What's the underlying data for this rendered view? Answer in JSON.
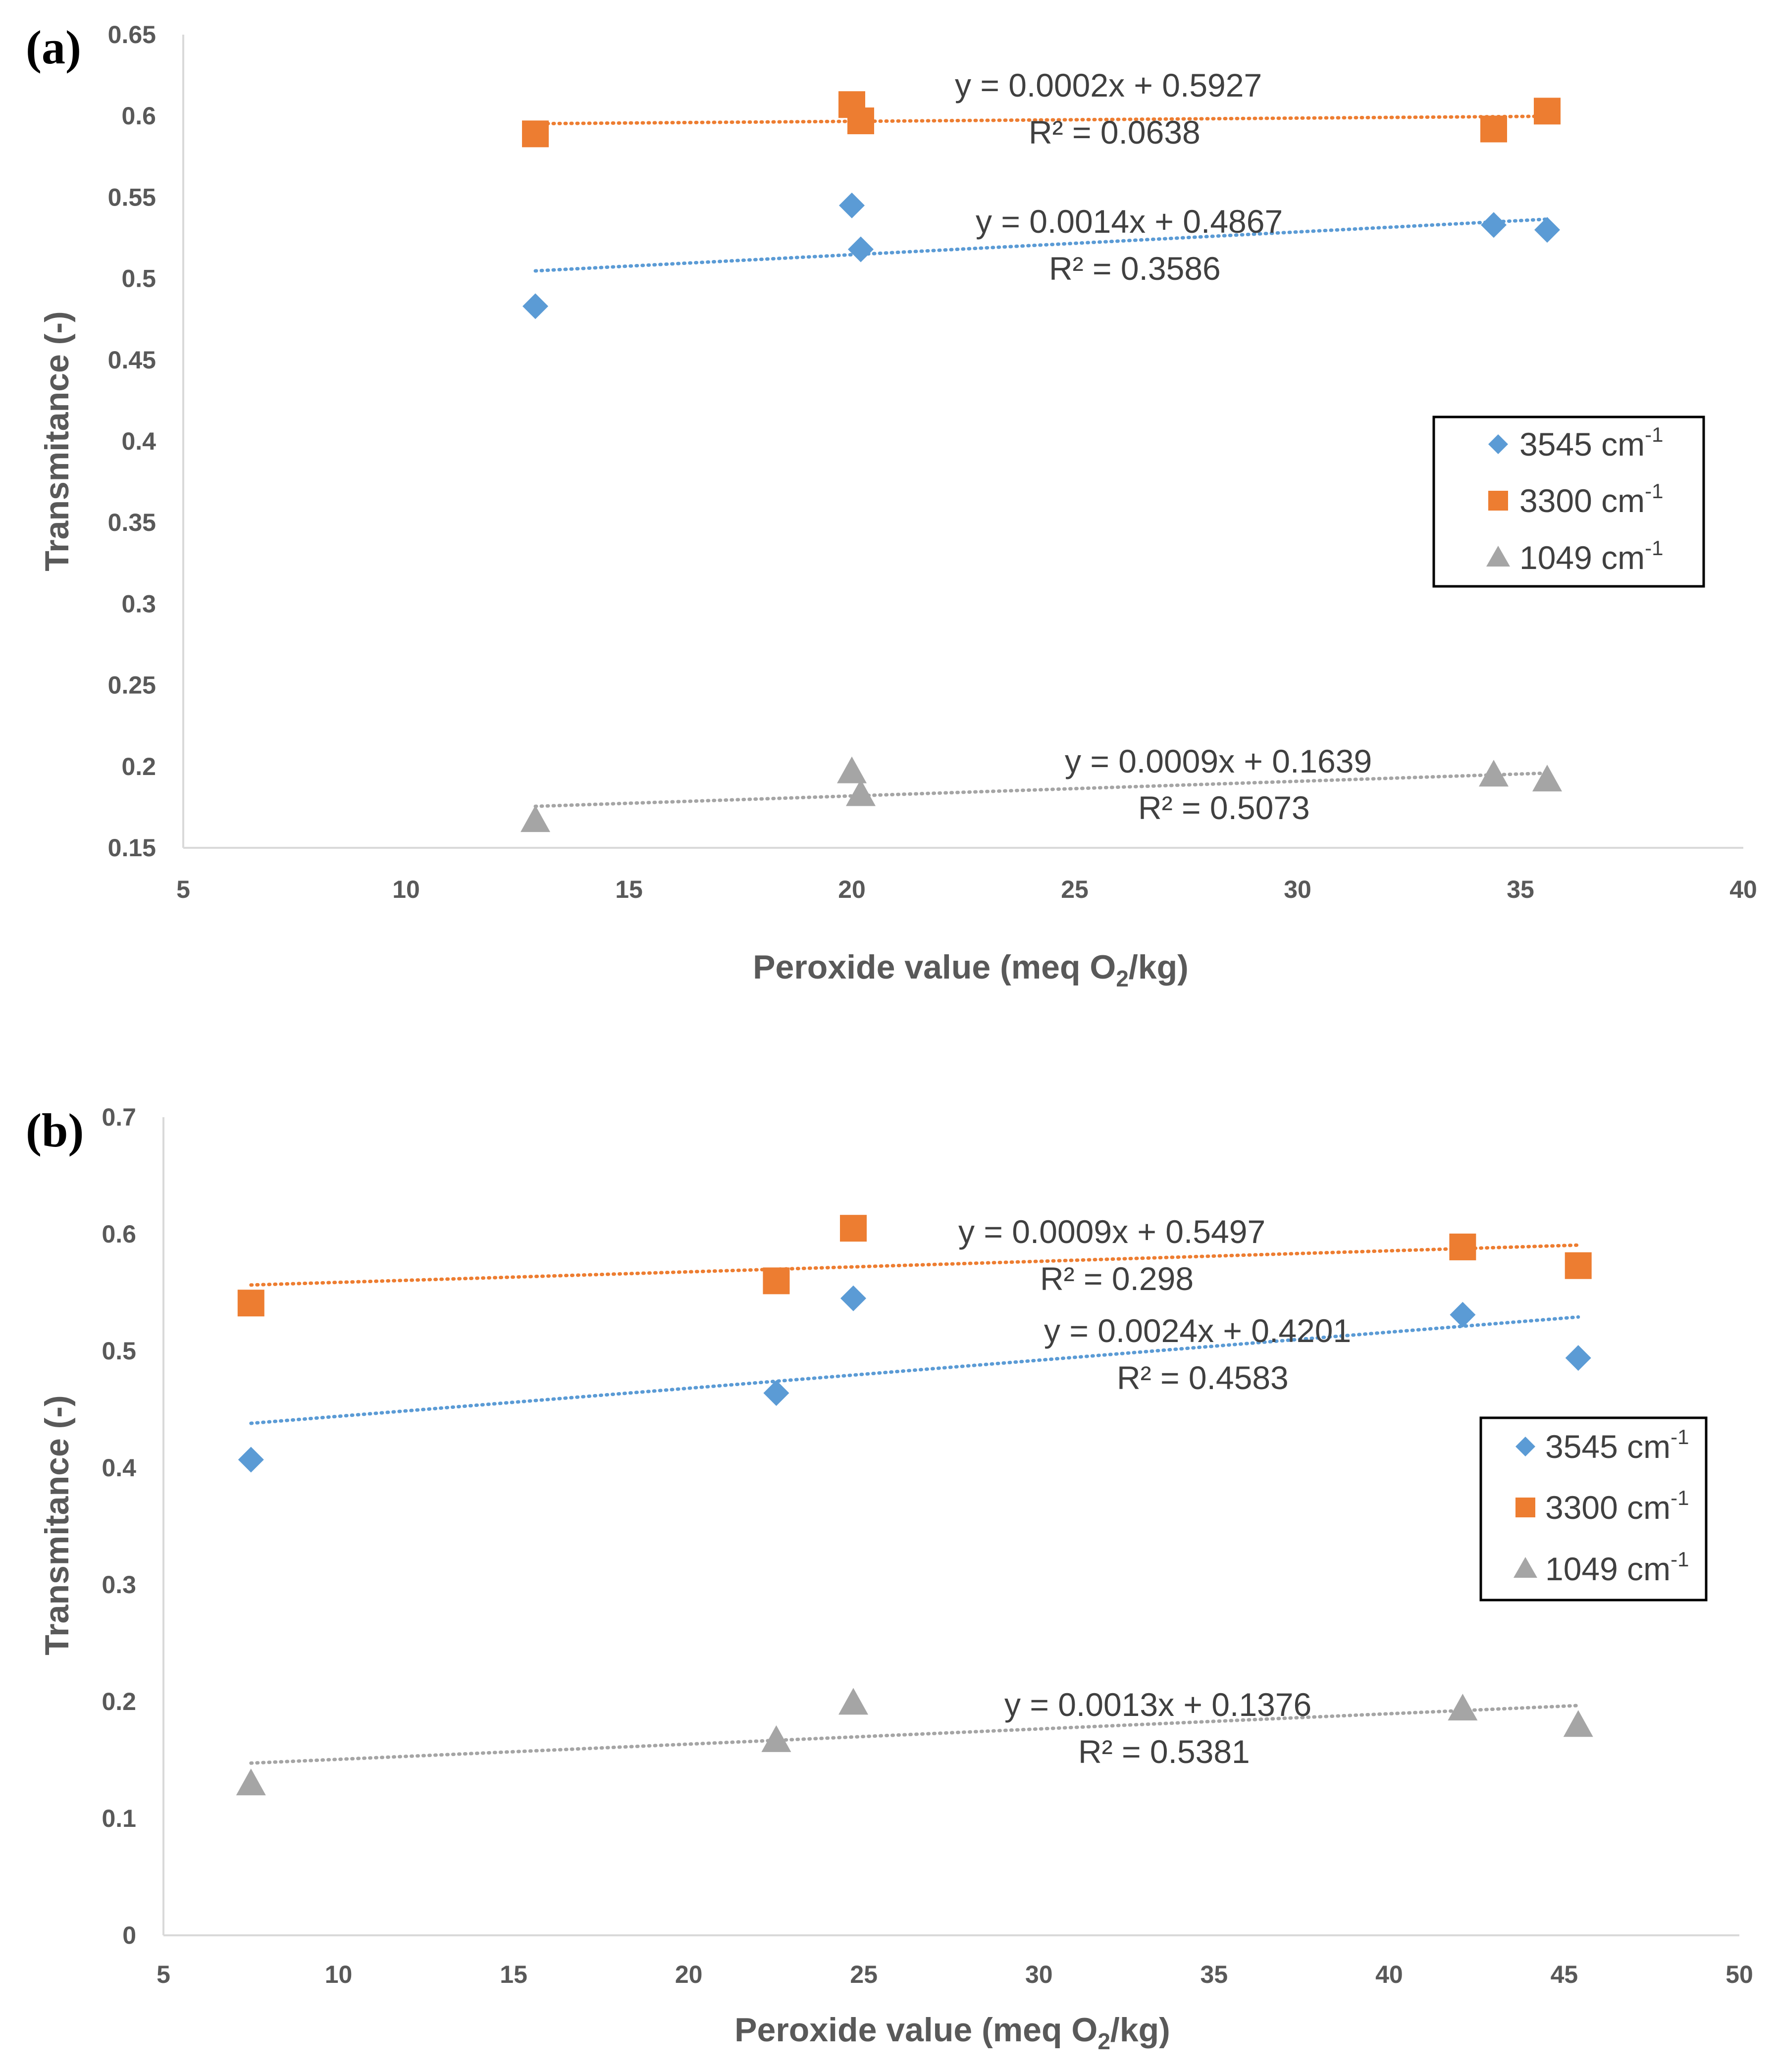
{
  "chart_data": [
    {
      "type": "scatter",
      "panel_label": "(a)",
      "xlabel_main": "Peroxide value (meq O",
      "xlabel_sub": "2",
      "xlabel_end": "/kg)",
      "ylabel": "Transmitance (-)",
      "xlim": [
        5,
        40
      ],
      "ylim": [
        0.15,
        0.65
      ],
      "xticks": [
        "5",
        "10",
        "15",
        "20",
        "25",
        "30",
        "35",
        "40"
      ],
      "yticks": [
        "0.15",
        "0.2",
        "0.25",
        "0.3",
        "0.35",
        "0.4",
        "0.45",
        "0.5",
        "0.55",
        "0.6",
        "0.65"
      ],
      "legend_position": "right",
      "series": [
        {
          "name": "3545 cm",
          "sup": "-1",
          "marker": "diamond",
          "color": "#5B9BD5",
          "x": [
            12.9,
            20.0,
            20.2,
            34.4,
            35.6
          ],
          "y": [
            0.483,
            0.545,
            0.518,
            0.533,
            0.53
          ],
          "trend": {
            "slope": 0.0014,
            "intercept": 0.4867,
            "x_range": [
              12.9,
              35.6
            ]
          },
          "equation": "y = 0.0014x + 0.4867",
          "r2": "R² = 0.3586"
        },
        {
          "name": "3300 cm",
          "sup": "-1",
          "marker": "square",
          "color": "#ED7D31",
          "x": [
            12.9,
            20.0,
            20.2,
            34.4,
            35.6
          ],
          "y": [
            0.589,
            0.607,
            0.597,
            0.592,
            0.603
          ],
          "trend": {
            "slope": 0.0002,
            "intercept": 0.5927,
            "x_range": [
              12.9,
              35.6
            ]
          },
          "equation": "y = 0.0002x + 0.5927",
          "r2": "R² = 0.0638"
        },
        {
          "name": "1049 cm",
          "sup": "-1",
          "marker": "triangle",
          "color": "#A5A5A5",
          "x": [
            12.9,
            20.0,
            20.2,
            34.4,
            35.6
          ],
          "y": [
            0.167,
            0.197,
            0.183,
            0.195,
            0.192
          ],
          "trend": {
            "slope": 0.0009,
            "intercept": 0.1639,
            "x_range": [
              12.9,
              35.6
            ]
          },
          "equation": "y = 0.0009x + 0.1639",
          "r2": "R² = 0.5073"
        }
      ]
    },
    {
      "type": "scatter",
      "panel_label": "(b)",
      "xlabel_main": "Peroxide value (meq O",
      "xlabel_sub": "2",
      "xlabel_end": "/kg)",
      "ylabel": "Transmitance (-)",
      "xlim": [
        5,
        50
      ],
      "ylim": [
        0,
        0.7
      ],
      "xticks": [
        "5",
        "10",
        "15",
        "20",
        "25",
        "30",
        "35",
        "40",
        "45",
        "50"
      ],
      "yticks": [
        "0",
        "0.1",
        "0.2",
        "0.3",
        "0.4",
        "0.5",
        "0.6",
        "0.7"
      ],
      "legend_position": "right",
      "series": [
        {
          "name": "3545 cm",
          "sup": "-1",
          "marker": "diamond",
          "color": "#5B9BD5",
          "x": [
            7.5,
            22.5,
            24.7,
            42.1,
            45.4
          ],
          "y": [
            0.407,
            0.464,
            0.545,
            0.531,
            0.494
          ],
          "trend": {
            "slope": 0.0024,
            "intercept": 0.4201,
            "x_range": [
              7.5,
              45.4
            ]
          },
          "equation": "y = 0.0024x + 0.4201",
          "r2": "R² = 0.4583"
        },
        {
          "name": "3300 cm",
          "sup": "-1",
          "marker": "square",
          "color": "#ED7D31",
          "x": [
            7.5,
            22.5,
            24.7,
            42.1,
            45.4
          ],
          "y": [
            0.541,
            0.56,
            0.605,
            0.589,
            0.573
          ],
          "trend": {
            "slope": 0.0009,
            "intercept": 0.5497,
            "x_range": [
              7.5,
              45.4
            ]
          },
          "equation": "y = 0.0009x + 0.5497",
          "r2": "R² = 0.298"
        },
        {
          "name": "1049 cm",
          "sup": "-1",
          "marker": "triangle",
          "color": "#A5A5A5",
          "x": [
            7.5,
            22.5,
            24.7,
            42.1,
            45.4
          ],
          "y": [
            0.13,
            0.167,
            0.199,
            0.194,
            0.18
          ],
          "trend": {
            "slope": 0.0013,
            "intercept": 0.1376,
            "x_range": [
              7.5,
              45.4
            ]
          },
          "equation": "y = 0.0013x + 0.1376",
          "r2": "R² = 0.5381"
        }
      ]
    }
  ]
}
